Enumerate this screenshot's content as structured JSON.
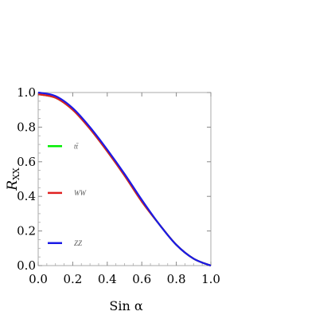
{
  "chart_data": {
    "type": "line",
    "title": "",
    "xlabel": "Sin α",
    "ylabel": "R_XX",
    "xlim": [
      0.0,
      1.0
    ],
    "ylim": [
      0.0,
      1.0
    ],
    "grid": false,
    "legend_position": "left-inside",
    "x_ticks": [
      "0.0",
      "0.2",
      "0.4",
      "0.6",
      "0.8",
      "1.0"
    ],
    "y_ticks": [
      "0.0",
      "0.2",
      "0.4",
      "0.6",
      "0.8",
      "1.0"
    ],
    "x": [
      0.0,
      0.1,
      0.2,
      0.3,
      0.4,
      0.5,
      0.6,
      0.7,
      0.8,
      0.9,
      1.0
    ],
    "series": [
      {
        "name": "tt̄",
        "color": "#00ee00",
        "values": [
          0.99,
          0.97,
          0.9,
          0.79,
          0.66,
          0.52,
          0.37,
          0.24,
          0.12,
          0.04,
          0.0
        ]
      },
      {
        "name": "WW",
        "color": "#e02020",
        "values": [
          0.99,
          0.97,
          0.9,
          0.79,
          0.66,
          0.52,
          0.37,
          0.24,
          0.12,
          0.04,
          0.0
        ]
      },
      {
        "name": "ZZ",
        "color": "#1a1ae6",
        "values": [
          1.0,
          0.98,
          0.91,
          0.8,
          0.67,
          0.53,
          0.38,
          0.24,
          0.12,
          0.04,
          0.0
        ]
      }
    ]
  }
}
